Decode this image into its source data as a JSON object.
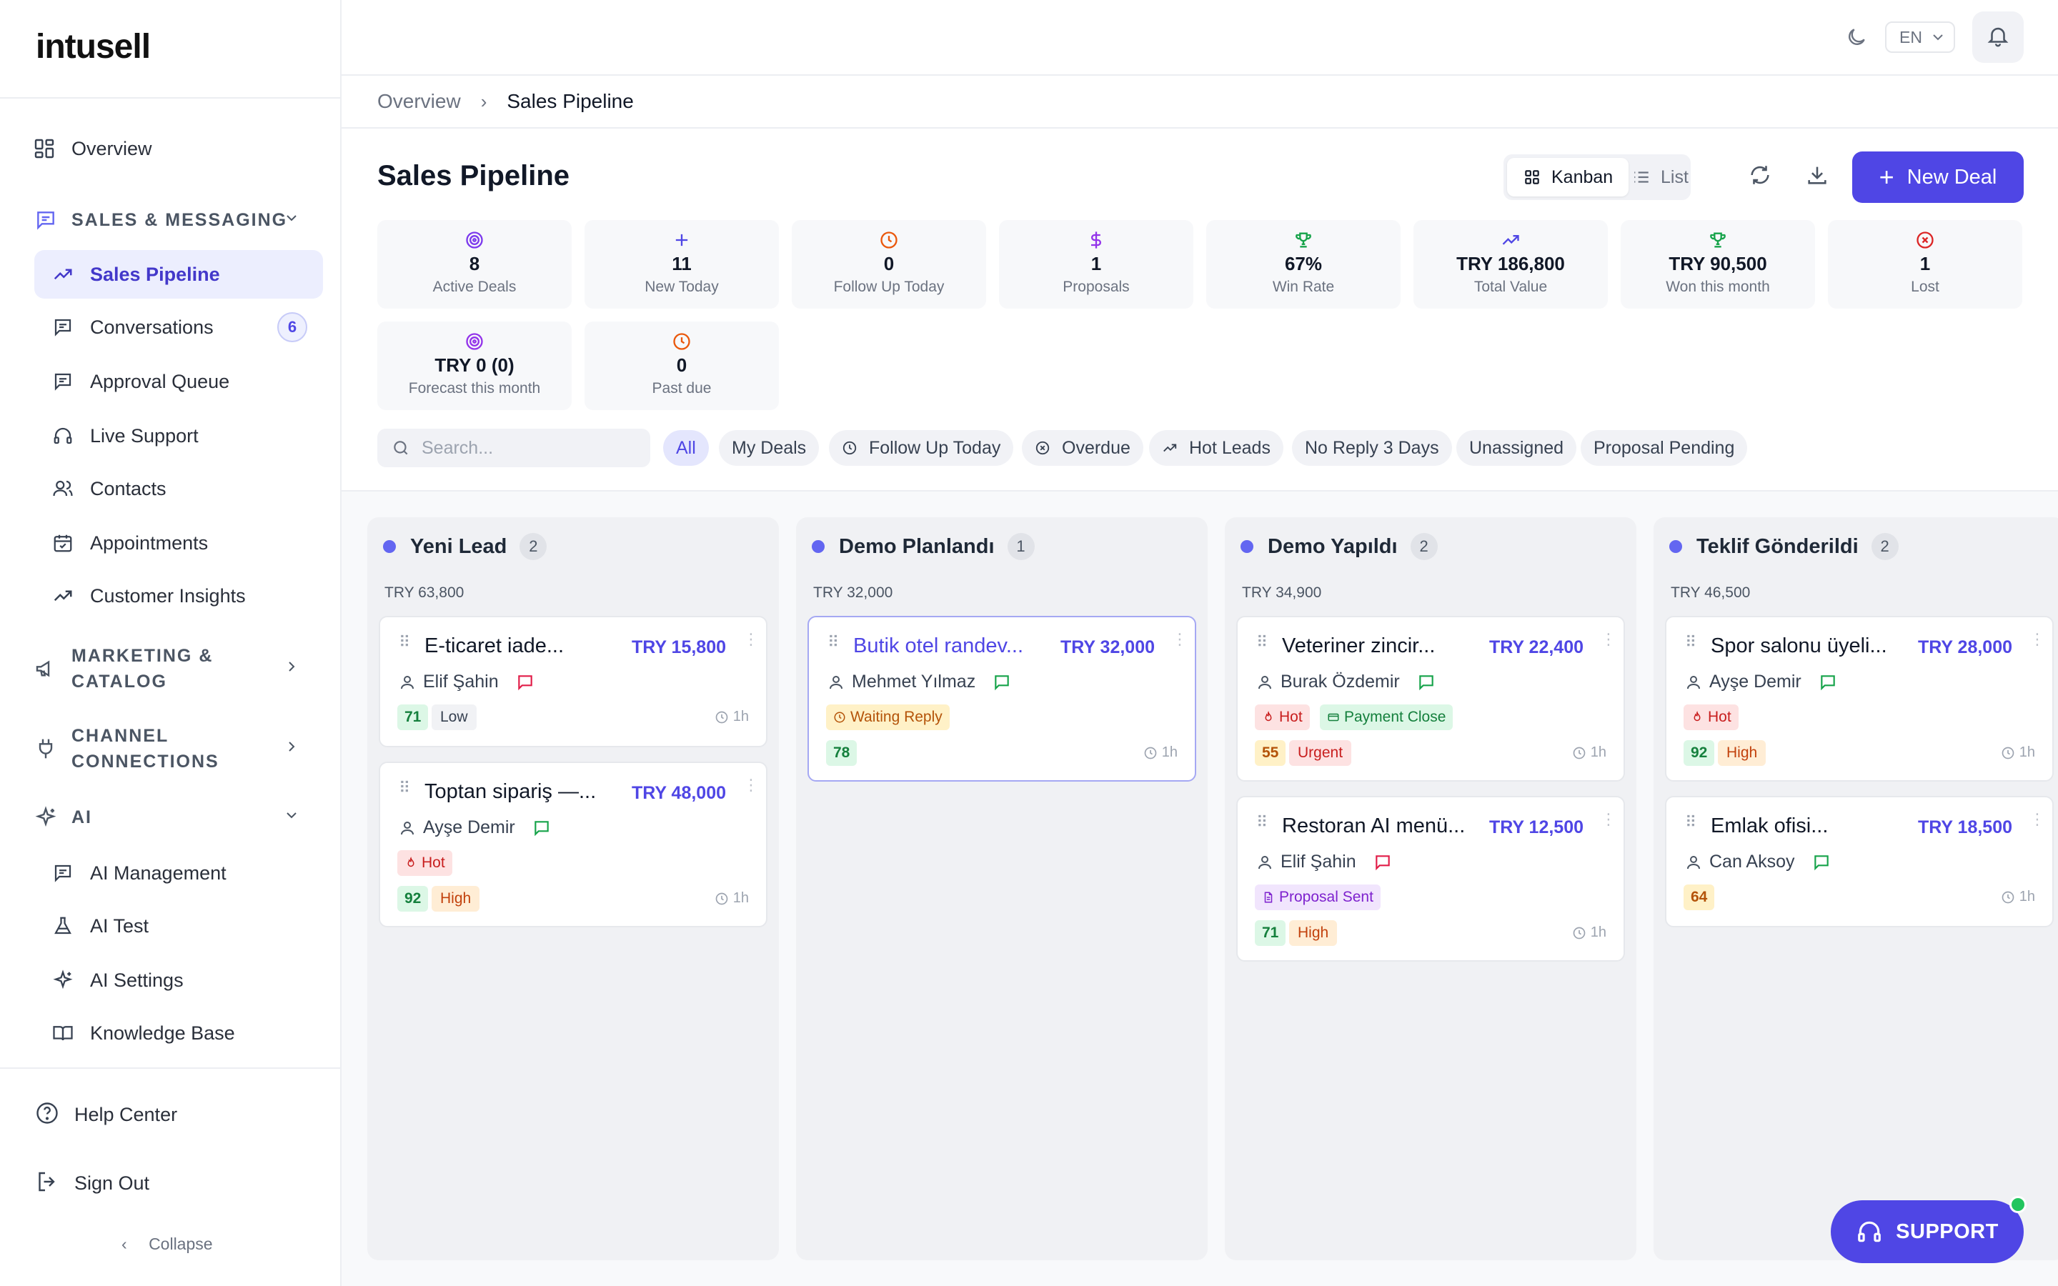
{
  "brand": {
    "logo_text": "intusell"
  },
  "sidebar": {
    "overview": "Overview",
    "sales_section": "SALES & MESSAGING",
    "sales_items": [
      {
        "label": "Sales Pipeline",
        "icon": "trend-up-icon",
        "active": true
      },
      {
        "label": "Conversations",
        "icon": "chat-icon",
        "badge": "6"
      },
      {
        "label": "Approval Queue",
        "icon": "chat-icon"
      },
      {
        "label": "Live Support",
        "icon": "headset-icon"
      },
      {
        "label": "Contacts",
        "icon": "users-icon"
      },
      {
        "label": "Appointments",
        "icon": "calendar-icon"
      },
      {
        "label": "Customer Insights",
        "icon": "trend-up-icon"
      }
    ],
    "marketing_section": "MARKETING & CATALOG",
    "channel_section": "CHANNEL CONNECTIONS",
    "ai_section": "AI",
    "ai_items": [
      {
        "label": "AI Management",
        "icon": "chat-icon"
      },
      {
        "label": "AI Test",
        "icon": "flask-icon"
      },
      {
        "label": "AI Settings",
        "icon": "sparkle-icon"
      },
      {
        "label": "Knowledge Base",
        "icon": "book-icon"
      }
    ],
    "help": "Help Center",
    "signout": "Sign Out",
    "collapse": "Collapse"
  },
  "header": {
    "lang": "EN"
  },
  "breadcrumb": {
    "parent": "Overview",
    "current": "Sales Pipeline"
  },
  "page": {
    "title": "Sales Pipeline",
    "view_kanban": "Kanban",
    "view_list": "List",
    "new_deal": "New Deal",
    "search_placeholder": "Search..."
  },
  "stats": [
    {
      "value": "8",
      "label": "Active Deals",
      "icon": "target-icon",
      "color": "#7c3aed"
    },
    {
      "value": "11",
      "label": "New Today",
      "icon": "plus-icon",
      "color": "#4f46e5"
    },
    {
      "value": "0",
      "label": "Follow Up Today",
      "icon": "clock-icon",
      "color": "#ea580c"
    },
    {
      "value": "1",
      "label": "Proposals",
      "icon": "dollar-icon",
      "color": "#9333ea"
    },
    {
      "value": "67%",
      "label": "Win Rate",
      "icon": "trophy-icon",
      "color": "#16a34a"
    },
    {
      "value": "TRY 186,800",
      "label": "Total Value",
      "icon": "trend-up-icon",
      "color": "#4f46e5"
    },
    {
      "value": "TRY 90,500",
      "label": "Won this month",
      "icon": "trophy-icon",
      "color": "#16a34a"
    },
    {
      "value": "1",
      "label": "Lost",
      "icon": "x-circle-icon",
      "color": "#dc2626"
    },
    {
      "value": "TRY 0 (0)",
      "label": "Forecast this month",
      "icon": "target-icon",
      "color": "#9333ea"
    },
    {
      "value": "0",
      "label": "Past due",
      "icon": "clock-icon",
      "color": "#ea580c"
    }
  ],
  "filters": [
    "All",
    "My Deals",
    "Follow Up Today",
    "Overdue",
    "Hot Leads",
    "No Reply 3 Days",
    "Unassigned",
    "Proposal Pending"
  ],
  "columns": [
    {
      "title": "Yeni Lead",
      "count": "2",
      "total": "TRY 63,800",
      "cards": [
        {
          "title": "E-ticaret iade...",
          "value": "TRY 15,800",
          "owner": "Elif Şahin",
          "msg_color": "#e11d48",
          "tags": [],
          "score": "71",
          "priority": "Low",
          "age": "1h"
        },
        {
          "title": "Toptan sipariş —...",
          "value": "TRY 48,000",
          "owner": "Ayşe Demir",
          "msg_color": "#16a34a",
          "tags": [
            "Hot"
          ],
          "score": "92",
          "priority": "High",
          "age": "1h"
        }
      ]
    },
    {
      "title": "Demo Planlandı",
      "count": "1",
      "total": "TRY 32,000",
      "cards": [
        {
          "title": "Butik otel randev...",
          "value": "TRY 32,000",
          "owner": "Mehmet Yılmaz",
          "msg_color": "#16a34a",
          "tags": [
            "Waiting Reply"
          ],
          "score": "78",
          "priority": "",
          "age": "1h"
        }
      ]
    },
    {
      "title": "Demo Yapıldı",
      "count": "2",
      "total": "TRY 34,900",
      "cards": [
        {
          "title": "Veteriner zincir...",
          "value": "TRY 22,400",
          "owner": "Burak Özdemir",
          "msg_color": "#16a34a",
          "tags": [
            "Hot",
            "Payment Close"
          ],
          "score": "55",
          "priority": "Urgent",
          "age": "1h"
        },
        {
          "title": "Restoran AI menü...",
          "value": "TRY 12,500",
          "owner": "Elif Şahin",
          "msg_color": "#e11d48",
          "tags": [
            "Proposal Sent"
          ],
          "score": "71",
          "priority": "High",
          "age": "1h"
        }
      ]
    },
    {
      "title": "Teklif Gönderildi",
      "count": "2",
      "total": "TRY 46,500",
      "cards": [
        {
          "title": "Spor salonu üyeli...",
          "value": "TRY 28,000",
          "owner": "Ayşe Demir",
          "msg_color": "#16a34a",
          "tags": [
            "Hot"
          ],
          "score": "92",
          "priority": "High",
          "age": "1h"
        },
        {
          "title": "Emlak ofisi...",
          "value": "TRY 18,500",
          "owner": "Can Aksoy",
          "msg_color": "#16a34a",
          "tags": [],
          "score": "64",
          "priority": "",
          "age": "1h"
        }
      ]
    }
  ],
  "support": {
    "label": "SUPPORT"
  }
}
